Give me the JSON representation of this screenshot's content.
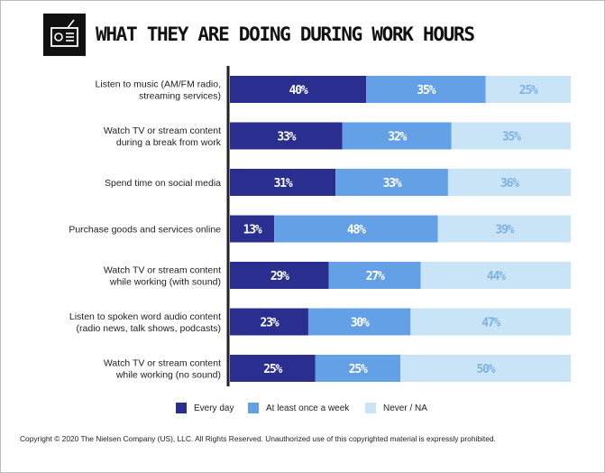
{
  "header": {
    "title": "WHAT THEY ARE DOING DURING WORK HOURS",
    "icon": "radio-icon"
  },
  "colors": {
    "every_day": "#2a2e8e",
    "weekly": "#64a0e6",
    "never": "#c8e4f6",
    "axis": "#222222",
    "label": "#222222"
  },
  "chart_data": {
    "type": "bar",
    "orientation": "horizontal",
    "stacked": true,
    "title": "WHAT THEY ARE DOING DURING WORK HOURS",
    "xlim": [
      0,
      100
    ],
    "unit": "%",
    "categories": [
      [
        "Listen to music (AM/FM radio,",
        "streaming services)"
      ],
      [
        "Watch TV or stream content",
        "during a break from work"
      ],
      [
        "Spend time on social media"
      ],
      [
        "Purchase goods and services online"
      ],
      [
        "Watch TV or stream content",
        "while working (with sound)"
      ],
      [
        "Listen to spoken word audio content",
        "(radio news, talk shows, podcasts)"
      ],
      [
        "Watch TV or stream content",
        "while working (no sound)"
      ]
    ],
    "series": [
      {
        "name": "Every day",
        "values": [
          40,
          33,
          31,
          13,
          29,
          23,
          25
        ],
        "labels": [
          "40%",
          "33%",
          "31%",
          "13%",
          "29%",
          "23%",
          "25%"
        ]
      },
      {
        "name": "At least once a week",
        "values": [
          35,
          32,
          33,
          48,
          27,
          30,
          25
        ],
        "labels": [
          "35%",
          "32%",
          "33%",
          "48%",
          "27%",
          "30%",
          "25%"
        ]
      },
      {
        "name": "Never / NA",
        "values": [
          25,
          35,
          36,
          39,
          44,
          47,
          50
        ],
        "labels": [
          "25%",
          "35%",
          "36%",
          "39%",
          "44%",
          "47%",
          "50%"
        ]
      }
    ],
    "legend_position": "bottom"
  },
  "legend": {
    "items": [
      {
        "label": "Every day",
        "color": "#2a2e8e"
      },
      {
        "label": "At least once a week",
        "color": "#64a0e6"
      },
      {
        "label": "Never / NA",
        "color": "#c8e4f6"
      }
    ]
  },
  "footer": {
    "copyright": "Copyright © 2020 The Nielsen Company (US), LLC. All Rights Reserved. Unauthorized use of this copyrighted material is expressly prohibited."
  }
}
